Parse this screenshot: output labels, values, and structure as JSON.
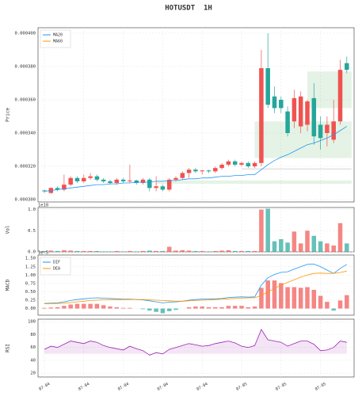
{
  "chart_data": [
    {
      "type": "candlestick",
      "title": "HOTUSDT  1H",
      "ylabel": "Price",
      "open": [
        0.0003055,
        0.000304,
        0.000307,
        0.000306,
        0.000309,
        0.000313,
        0.000311,
        0.000313,
        0.000314,
        0.000312,
        0.000311,
        0.00031,
        0.000312,
        0.000311,
        0.0003115,
        0.00031,
        0.000312,
        0.000307,
        0.000308,
        0.000306,
        0.000312,
        0.000313,
        0.000316,
        0.000318,
        0.000317,
        0.0003175,
        0.000317,
        0.000319,
        0.000321,
        0.000323,
        0.000321,
        0.000322,
        0.00032,
        0.000322,
        0.000379,
        0.000362,
        0.00036,
        0.000353,
        0.000347,
        0.000344,
        0.000345,
        0.000361,
        0.000345,
        0.00034,
        0.000336,
        0.000347,
        0.000382
      ],
      "high": [
        0.000306,
        0.0003075,
        0.000308,
        0.000315,
        0.000314,
        0.000314,
        0.000315,
        0.000316,
        0.000315,
        0.000313,
        0.000312,
        0.000313,
        0.000313,
        0.000321,
        0.000312,
        0.000313,
        0.000313,
        0.000314,
        0.000309,
        0.000313,
        0.000314,
        0.000317,
        0.000319,
        0.000319,
        0.000318,
        0.000318,
        0.00032,
        0.000322,
        0.000324,
        0.000324,
        0.000323,
        0.000323,
        0.000323,
        0.00039,
        0.0004,
        0.000368,
        0.000362,
        0.000356,
        0.000366,
        0.000365,
        0.00036,
        0.00037,
        0.00035,
        0.00035,
        0.00036,
        0.000384,
        0.000386
      ],
      "low": [
        0.000304,
        0.0003035,
        0.000305,
        0.000305,
        0.000308,
        0.00031,
        0.00031,
        0.000312,
        0.000311,
        0.00031,
        0.000309,
        0.000309,
        0.00031,
        0.00031,
        0.000309,
        0.000309,
        0.000305,
        0.000305,
        0.000305,
        0.000305,
        0.000311,
        0.000312,
        0.000313,
        0.000316,
        0.000315,
        0.000316,
        0.000316,
        0.000318,
        0.00032,
        0.00032,
        0.00032,
        0.000319,
        0.000319,
        0.00032,
        0.000355,
        0.000352,
        0.000352,
        0.000338,
        0.000343,
        0.00034,
        0.000341,
        0.000333,
        0.00033,
        0.000332,
        0.000334,
        0.000345,
        0.000376
      ],
      "close": [
        0.000305,
        0.000307,
        0.000306,
        0.000309,
        0.000313,
        0.000311,
        0.000313,
        0.000314,
        0.000312,
        0.000311,
        0.00031,
        0.000312,
        0.000311,
        0.0003115,
        0.00031,
        0.000312,
        0.000307,
        0.000308,
        0.000306,
        0.000312,
        0.000313,
        0.000316,
        0.000318,
        0.000317,
        0.0003175,
        0.000317,
        0.000319,
        0.000321,
        0.000323,
        0.000321,
        0.000322,
        0.00032,
        0.000322,
        0.000379,
        0.000357,
        0.000355,
        0.000355,
        0.00034,
        0.000361,
        0.000362,
        0.000359,
        0.000338,
        0.000337,
        0.000345,
        0.000347,
        0.000378,
        0.000378
      ],
      "up_color": "#ef5350",
      "down_color": "#26a69a",
      "series": [
        {
          "name": "MA20",
          "color": "#2196f3",
          "values": [
            0.000305,
            0.0003055,
            0.000306,
            0.0003065,
            0.000307,
            0.0003075,
            0.000308,
            0.0003085,
            0.000309,
            0.000309,
            0.0003095,
            0.0003095,
            0.00031,
            0.00031,
            0.0003105,
            0.0003105,
            0.0003105,
            0.000311,
            0.000311,
            0.0003115,
            0.0003115,
            0.000312,
            0.0003125,
            0.0003125,
            0.000313,
            0.000313,
            0.0003135,
            0.000314,
            0.000314,
            0.0003145,
            0.0003145,
            0.000315,
            0.000315,
            0.000318,
            0.000321,
            0.0003235,
            0.0003255,
            0.000327,
            0.000329,
            0.000331,
            0.000333,
            0.000334,
            0.0003355,
            0.000337,
            0.000339,
            0.0003415,
            0.000344
          ]
        },
        {
          "name": "MA60",
          "color": "#ff9800",
          "values": [
            null,
            null,
            null,
            null,
            null,
            null,
            null,
            null,
            null,
            null,
            null,
            null,
            null,
            null,
            null,
            null,
            null,
            null,
            null,
            null,
            null,
            null,
            null,
            null,
            null,
            null,
            null,
            null,
            null,
            null,
            null,
            null,
            null,
            null,
            null,
            null,
            null,
            null,
            null,
            null,
            null,
            null,
            null,
            null,
            null,
            null,
            null
          ]
        }
      ],
      "zones": [
        {
          "x": [
            32,
            46
          ],
          "y": [
            0.000325,
            0.000347
          ]
        },
        {
          "x": [
            40,
            46
          ],
          "y": [
            0.000355,
            0.000377
          ]
        },
        {
          "x": [
            17,
            46
          ],
          "y": [
            0.0003095,
            0.0003115
          ]
        }
      ],
      "hlines": [
        {
          "x": [
            30,
            46
          ],
          "y": 0.0003185
        }
      ],
      "ylim": [
        0.0002986,
        0.0004033
      ],
      "yticks": [
        {
          "value": 0.0003,
          "label": "0.000300"
        },
        {
          "value": 0.00032,
          "label": "0.000320"
        },
        {
          "value": 0.00034,
          "label": "0.000340"
        },
        {
          "value": 0.00036,
          "label": "0.000360"
        },
        {
          "value": 0.00038,
          "label": "0.000380"
        },
        {
          "value": 0.0004,
          "label": "0.000400"
        }
      ],
      "grid": true,
      "legend": "upper left"
    },
    {
      "type": "bar",
      "ylabel": "Vol",
      "offset_label": "1e10",
      "values": [
        0.02,
        0.03,
        0.02,
        0.04,
        0.03,
        0.02,
        0.02,
        0.02,
        0.02,
        0.01,
        0.01,
        0.02,
        0.01,
        0.02,
        0.01,
        0.02,
        0.03,
        0.02,
        0.02,
        0.12,
        0.03,
        0.04,
        0.03,
        0.02,
        0.02,
        0.01,
        0.02,
        0.03,
        0.04,
        0.02,
        0.02,
        0.02,
        0.02,
        1.0,
        1.02,
        0.25,
        0.3,
        0.22,
        0.48,
        0.2,
        0.5,
        0.38,
        0.25,
        0.2,
        0.15,
        0.68,
        0.2
      ],
      "ylim": [
        0,
        1.05
      ],
      "yticks": [
        {
          "value": 0,
          "label": "0.0"
        },
        0.5,
        {
          "value": 1,
          "label": "1.0"
        }
      ],
      "grid": true
    },
    {
      "type": "macd",
      "ylabel": "MACD",
      "offset_label": "1e-5",
      "series": [
        {
          "name": "DIF",
          "color": "#2196f3",
          "values": [
            0.15,
            0.16,
            0.17,
            0.2,
            0.24,
            0.27,
            0.29,
            0.31,
            0.32,
            0.31,
            0.3,
            0.29,
            0.28,
            0.28,
            0.27,
            0.26,
            0.23,
            0.2,
            0.17,
            0.19,
            0.2,
            0.22,
            0.25,
            0.27,
            0.28,
            0.28,
            0.29,
            0.3,
            0.33,
            0.34,
            0.35,
            0.34,
            0.35,
            0.7,
            0.92,
            1.02,
            1.08,
            1.1,
            1.18,
            1.25,
            1.32,
            1.33,
            1.25,
            1.15,
            1.05,
            1.2,
            1.32
          ]
        },
        {
          "name": "DEA",
          "color": "#ff9800",
          "values": [
            0.14,
            0.145,
            0.15,
            0.16,
            0.18,
            0.2,
            0.22,
            0.24,
            0.25,
            0.26,
            0.27,
            0.27,
            0.27,
            0.27,
            0.27,
            0.27,
            0.26,
            0.25,
            0.24,
            0.23,
            0.22,
            0.22,
            0.23,
            0.24,
            0.25,
            0.26,
            0.27,
            0.28,
            0.29,
            0.3,
            0.31,
            0.32,
            0.32,
            0.39,
            0.5,
            0.6,
            0.7,
            0.78,
            0.86,
            0.94,
            1.0,
            1.05,
            1.06,
            1.05,
            1.05,
            1.08,
            1.12
          ]
        }
      ],
      "histogram": [
        0.02,
        0.03,
        0.04,
        0.08,
        0.12,
        0.14,
        0.14,
        0.14,
        0.14,
        0.1,
        0.06,
        0.04,
        0.02,
        0.02,
        0,
        -0.02,
        -0.06,
        -0.1,
        -0.14,
        -0.08,
        -0.04,
        0,
        0.04,
        0.06,
        0.06,
        0.04,
        0.04,
        0.04,
        0.08,
        0.08,
        0.08,
        0.04,
        0.06,
        0.62,
        0.84,
        0.84,
        0.76,
        0.64,
        0.64,
        0.62,
        0.64,
        0.56,
        0.38,
        0.2,
        -0.06,
        0.24,
        0.4
      ],
      "pos_color": "#ef5350",
      "neg_color": "#26a69a",
      "ylim": [
        -0.2,
        1.6
      ],
      "yticks": [
        {
          "value": 0,
          "label": "0.00"
        },
        0.25,
        {
          "value": 0.5,
          "label": "0.50"
        },
        0.75,
        {
          "value": 1,
          "label": "1.00"
        },
        1.25,
        {
          "value": 1.5,
          "label": "1.50"
        }
      ],
      "grid": true,
      "legend": "upper left"
    },
    {
      "type": "line",
      "ylabel": "RSI",
      "color": "#9c27b0",
      "fill_base": 50,
      "values": [
        57,
        62,
        60,
        65,
        70,
        68,
        66,
        70,
        68,
        63,
        60,
        58,
        56,
        62,
        58,
        55,
        48,
        52,
        50,
        57,
        60,
        63,
        66,
        64,
        62,
        63,
        66,
        68,
        70,
        67,
        62,
        60,
        63,
        88,
        72,
        70,
        68,
        62,
        66,
        70,
        70,
        65,
        55,
        56,
        60,
        70,
        68
      ],
      "categories": [
        "07-04",
        null,
        null,
        null,
        null,
        null,
        "07-04",
        null,
        null,
        null,
        null,
        null,
        "07-04",
        null,
        null,
        null,
        null,
        null,
        "07-04",
        null,
        null,
        null,
        null,
        null,
        "07-04",
        null,
        null,
        null,
        null,
        null,
        "07-05",
        null,
        null,
        null,
        null,
        null,
        "07-05",
        null,
        null,
        null,
        null,
        null,
        "07-05",
        null,
        null,
        null,
        null
      ],
      "ylim": [
        14,
        104
      ],
      "yticks": [
        20,
        40,
        60,
        80,
        100
      ],
      "grid": true
    }
  ]
}
